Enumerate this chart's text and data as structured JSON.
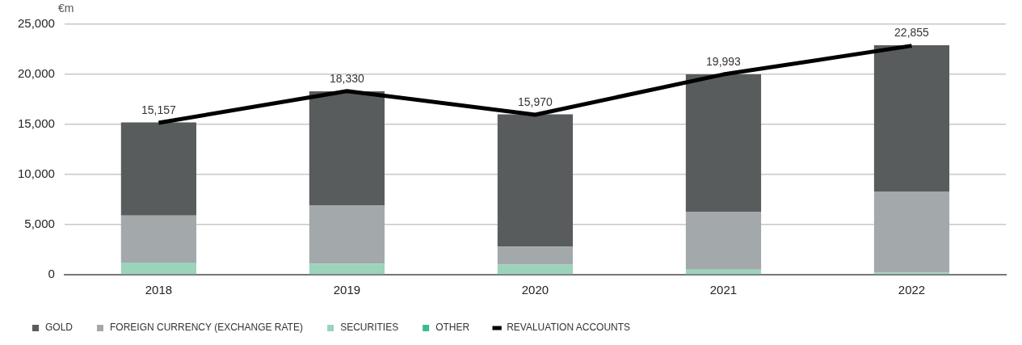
{
  "chart_data": {
    "type": "bar",
    "stacked": true,
    "ylabel": "€m",
    "categories": [
      "2018",
      "2019",
      "2020",
      "2021",
      "2022"
    ],
    "series": [
      {
        "name": "OTHER",
        "color": "#3dbb8a",
        "values": [
          0,
          0,
          0,
          0,
          0
        ]
      },
      {
        "name": "SECURITIES",
        "color": "#9bd3bb",
        "values": [
          1200,
          1100,
          1000,
          500,
          200
        ]
      },
      {
        "name": "FOREIGN CURRENCY (EXCHANGE RATE)",
        "color": "#a3a8aa",
        "values": [
          4700,
          5800,
          1800,
          5800,
          8100
        ]
      },
      {
        "name": "GOLD",
        "color": "#585c5c",
        "values": [
          9300,
          11400,
          13200,
          13700,
          14600
        ]
      },
      {
        "name": "REVALUATION ACCOUNTS",
        "type": "line",
        "color": "#000000",
        "values": [
          15157,
          18330,
          15970,
          19993,
          22855
        ],
        "value_labels": [
          "15,157",
          "18,330",
          "15,970",
          "19,993",
          "22,855"
        ]
      }
    ],
    "ylim": [
      0,
      25000
    ],
    "yticks": [
      {
        "value": 0,
        "label": "0"
      },
      {
        "value": 5000,
        "label": "5,000"
      },
      {
        "value": 10000,
        "label": "10,000"
      },
      {
        "value": 15000,
        "label": "15,000"
      },
      {
        "value": 20000,
        "label": "20,000"
      },
      {
        "value": 25000,
        "label": "25,000"
      }
    ],
    "grid": "y",
    "legend": "bottom left",
    "marker": "none"
  }
}
